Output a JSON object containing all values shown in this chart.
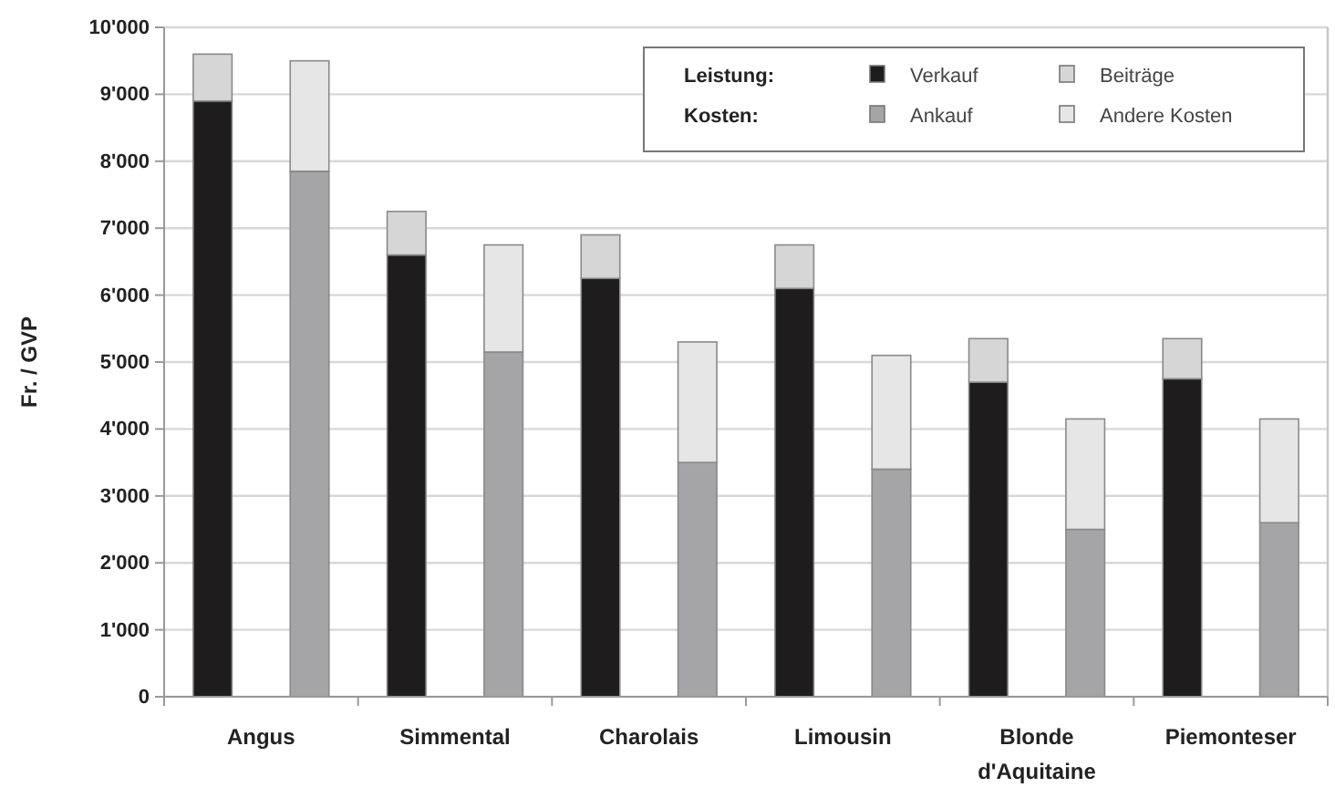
{
  "chart_data": {
    "type": "bar",
    "stacked": true,
    "ylabel": "Fr. / GVP",
    "categories": [
      "Angus",
      null,
      "Simmental",
      null,
      "Charolais",
      null,
      "Limousin",
      null,
      "Blonde d'Aquitaine",
      null,
      "Piemonteser",
      null
    ],
    "series": [
      {
        "name": "Verkauf",
        "color": "#1e1c1c",
        "values": [
          8900,
          null,
          6600,
          null,
          6250,
          null,
          6100,
          null,
          4700,
          null,
          4750,
          null
        ]
      },
      {
        "name": "Ankauf",
        "color": "#a5a5a8",
        "values": [
          null,
          7850,
          null,
          5150,
          null,
          3500,
          null,
          3400,
          null,
          2500,
          null,
          2600
        ]
      },
      {
        "name": "Beiträge",
        "color": "#d6d6d6",
        "values": [
          700,
          null,
          650,
          null,
          650,
          null,
          650,
          null,
          650,
          null,
          600,
          null
        ]
      },
      {
        "name": "Andere Kosten",
        "color": "#e6e6e6",
        "values": [
          null,
          1650,
          null,
          1600,
          null,
          1800,
          null,
          1700,
          null,
          1650,
          null,
          1550
        ]
      }
    ],
    "annotations": [
      "Leistung:",
      "Kosten:"
    ],
    "ylim": [
      0,
      10000
    ],
    "yticks": [
      0,
      {
        "value": 1000,
        "label": "1'000"
      },
      {
        "value": 2000,
        "label": "2'000"
      },
      {
        "value": 3000,
        "label": "3'000"
      },
      {
        "value": 4000,
        "label": "4'000"
      },
      {
        "value": 5000,
        "label": "5'000"
      },
      {
        "value": 6000,
        "label": "6'000"
      },
      {
        "value": 7000,
        "label": "7'000"
      },
      {
        "value": 8000,
        "label": "8'000"
      },
      {
        "value": 9000,
        "label": "9'000"
      },
      {
        "value": 10000,
        "label": "10'000"
      }
    ],
    "grid": "y",
    "legend": "top right"
  }
}
